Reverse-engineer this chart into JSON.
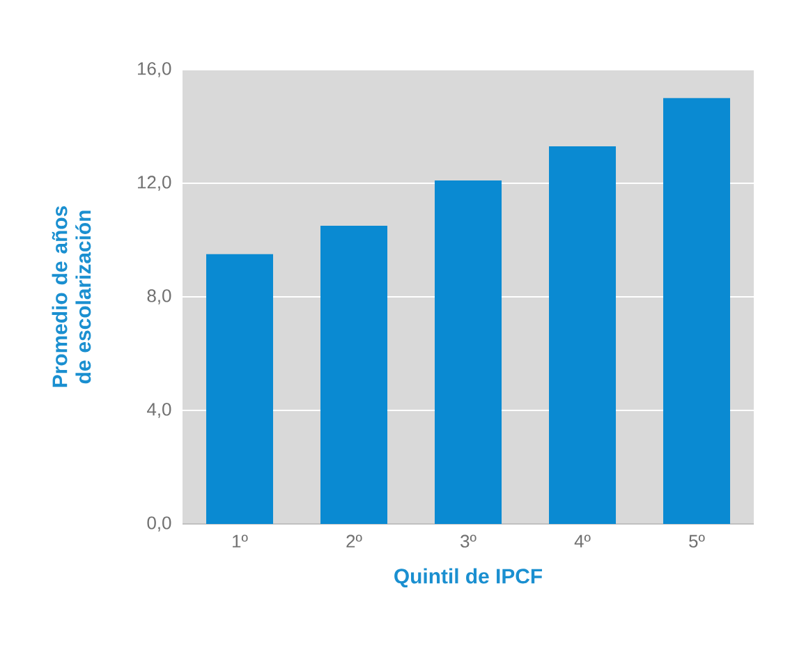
{
  "chart_data": {
    "type": "bar",
    "xlabel": "Quintil de IPCF",
    "ylabel": "Promedio de años de escolarización",
    "categories": [
      "1º",
      "2º",
      "3º",
      "4º",
      "5º"
    ],
    "values": [
      9.5,
      10.5,
      12.1,
      13.3,
      15.0
    ],
    "color": "#0a8ad2",
    "ylim": [
      0,
      16
    ],
    "yticks": [
      {
        "value": 0,
        "label": "0,0"
      },
      {
        "value": 4,
        "label": "4,0"
      },
      {
        "value": 8,
        "label": "8,0"
      },
      {
        "value": 12,
        "label": "12,0"
      },
      {
        "value": 16,
        "label": "16,0"
      }
    ],
    "grid": "y"
  }
}
